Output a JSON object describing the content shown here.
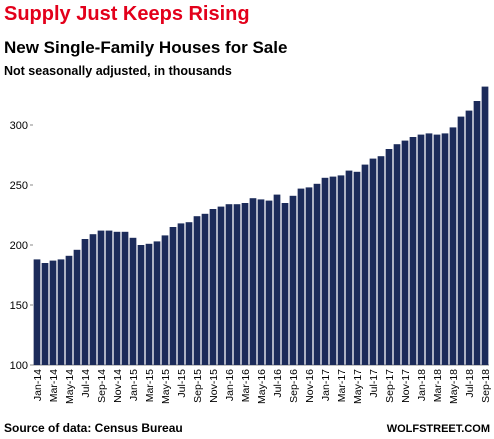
{
  "chart_data": {
    "type": "bar",
    "title": "Supply Just Keeps Rising",
    "subtitle": "New Single-Family Houses for Sale",
    "note": "Not seasonally adjusted, in thousands",
    "source": "Source of data: Census Bureau",
    "credit": "WOLFSTREET.COM",
    "color": "#1c2b5a",
    "categories": [
      "Jan-14",
      null,
      "Mar-14",
      null,
      "May-14",
      null,
      "Jul-14",
      null,
      "Sep-14",
      null,
      "Nov-14",
      null,
      "Jan-15",
      null,
      "Mar-15",
      null,
      "May-15",
      null,
      "Jul-15",
      null,
      "Sep-15",
      null,
      "Nov-15",
      null,
      "Jan-16",
      null,
      "Mar-16",
      null,
      "May-16",
      null,
      "Jul-16",
      null,
      "Sep-16",
      null,
      "Nov-16",
      null,
      "Jan-17",
      null,
      "Mar-17",
      null,
      "May-17",
      null,
      "Jul-17",
      null,
      "Sep-17",
      null,
      "Nov-17",
      null,
      "Jan-18",
      null,
      "Mar-18",
      null,
      "May-18",
      null,
      "Jul-18",
      null,
      "Sep-18"
    ],
    "values": [
      188,
      185,
      187,
      188,
      191,
      196,
      205,
      209,
      212,
      212,
      211,
      211,
      206,
      200,
      201,
      203,
      208,
      215,
      218,
      219,
      224,
      226,
      230,
      232,
      234,
      234,
      235,
      239,
      238,
      237,
      242,
      235,
      241,
      247,
      248,
      251,
      256,
      257,
      258,
      262,
      261,
      267,
      272,
      274,
      280,
      284,
      287,
      290,
      292,
      293,
      292,
      293,
      298,
      307,
      312,
      320,
      332
    ],
    "ylim": [
      100,
      340
    ],
    "yticks": [
      100,
      150,
      200,
      250,
      300
    ],
    "grid": false
  }
}
